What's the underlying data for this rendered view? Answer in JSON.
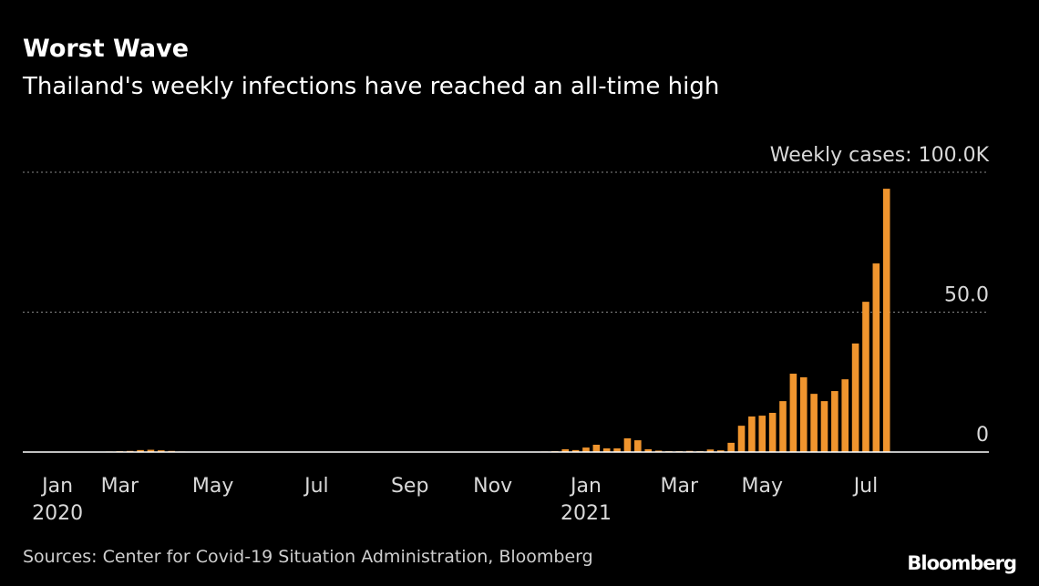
{
  "chart_data": {
    "type": "bar",
    "title": "Worst Wave",
    "subtitle": "Thailand's weekly infections have reached an all-time high",
    "source": "Sources: Center for Covid-19 Situation Administration, Bloomberg",
    "brand": "Bloomberg",
    "color": "#f0952e",
    "categories": [
      null,
      null,
      null,
      "Jan\n2020",
      null,
      null,
      null,
      null,
      null,
      "Mar",
      null,
      null,
      null,
      null,
      null,
      null,
      null,
      null,
      "May",
      null,
      null,
      null,
      null,
      null,
      null,
      null,
      null,
      null,
      "Jul",
      null,
      null,
      null,
      null,
      null,
      null,
      null,
      null,
      "Sep",
      null,
      null,
      null,
      null,
      null,
      null,
      null,
      "Nov",
      null,
      null,
      null,
      null,
      null,
      null,
      null,
      null,
      "Jan\n2021",
      null,
      null,
      null,
      null,
      null,
      null,
      null,
      null,
      "Mar",
      null,
      null,
      null,
      null,
      null,
      null,
      null,
      "May",
      null,
      null,
      null,
      null,
      null,
      null,
      null,
      null,
      null,
      "Jul",
      null,
      null
    ],
    "values": [
      0.1,
      0.1,
      0.1,
      0.1,
      0.1,
      0.1,
      0.1,
      0.1,
      0.2,
      0.3,
      0.4,
      0.7,
      0.8,
      0.6,
      0.4,
      0.2,
      0.1,
      0.1,
      0.1,
      0.1,
      0.1,
      0.1,
      0.1,
      0.1,
      0.1,
      0.1,
      0.1,
      0.1,
      0.1,
      0.1,
      0.1,
      0.1,
      0.1,
      0.1,
      0.1,
      0.1,
      0.1,
      0.1,
      0.1,
      0.1,
      0.1,
      0.1,
      0.1,
      0.1,
      0.1,
      0.1,
      0.1,
      0.1,
      0.1,
      0.1,
      0.2,
      0.3,
      1.0,
      0.7,
      1.6,
      2.6,
      1.3,
      1.3,
      4.9,
      4.2,
      1.0,
      0.5,
      0.3,
      0.3,
      0.4,
      0.3,
      0.9,
      0.6,
      3.3,
      9.4,
      12.7,
      13,
      14,
      18.2,
      28,
      26.7,
      20.8,
      18.2,
      21.8,
      26,
      38.8,
      53.7,
      67.4,
      94.1
    ],
    "ylim": [
      0,
      100
    ],
    "yticks": [
      0,
      {
        "value": 50,
        "label": "50.0"
      },
      {
        "value": 100,
        "label": "Weekly cases:  100.0K"
      }
    ],
    "grid": true
  }
}
